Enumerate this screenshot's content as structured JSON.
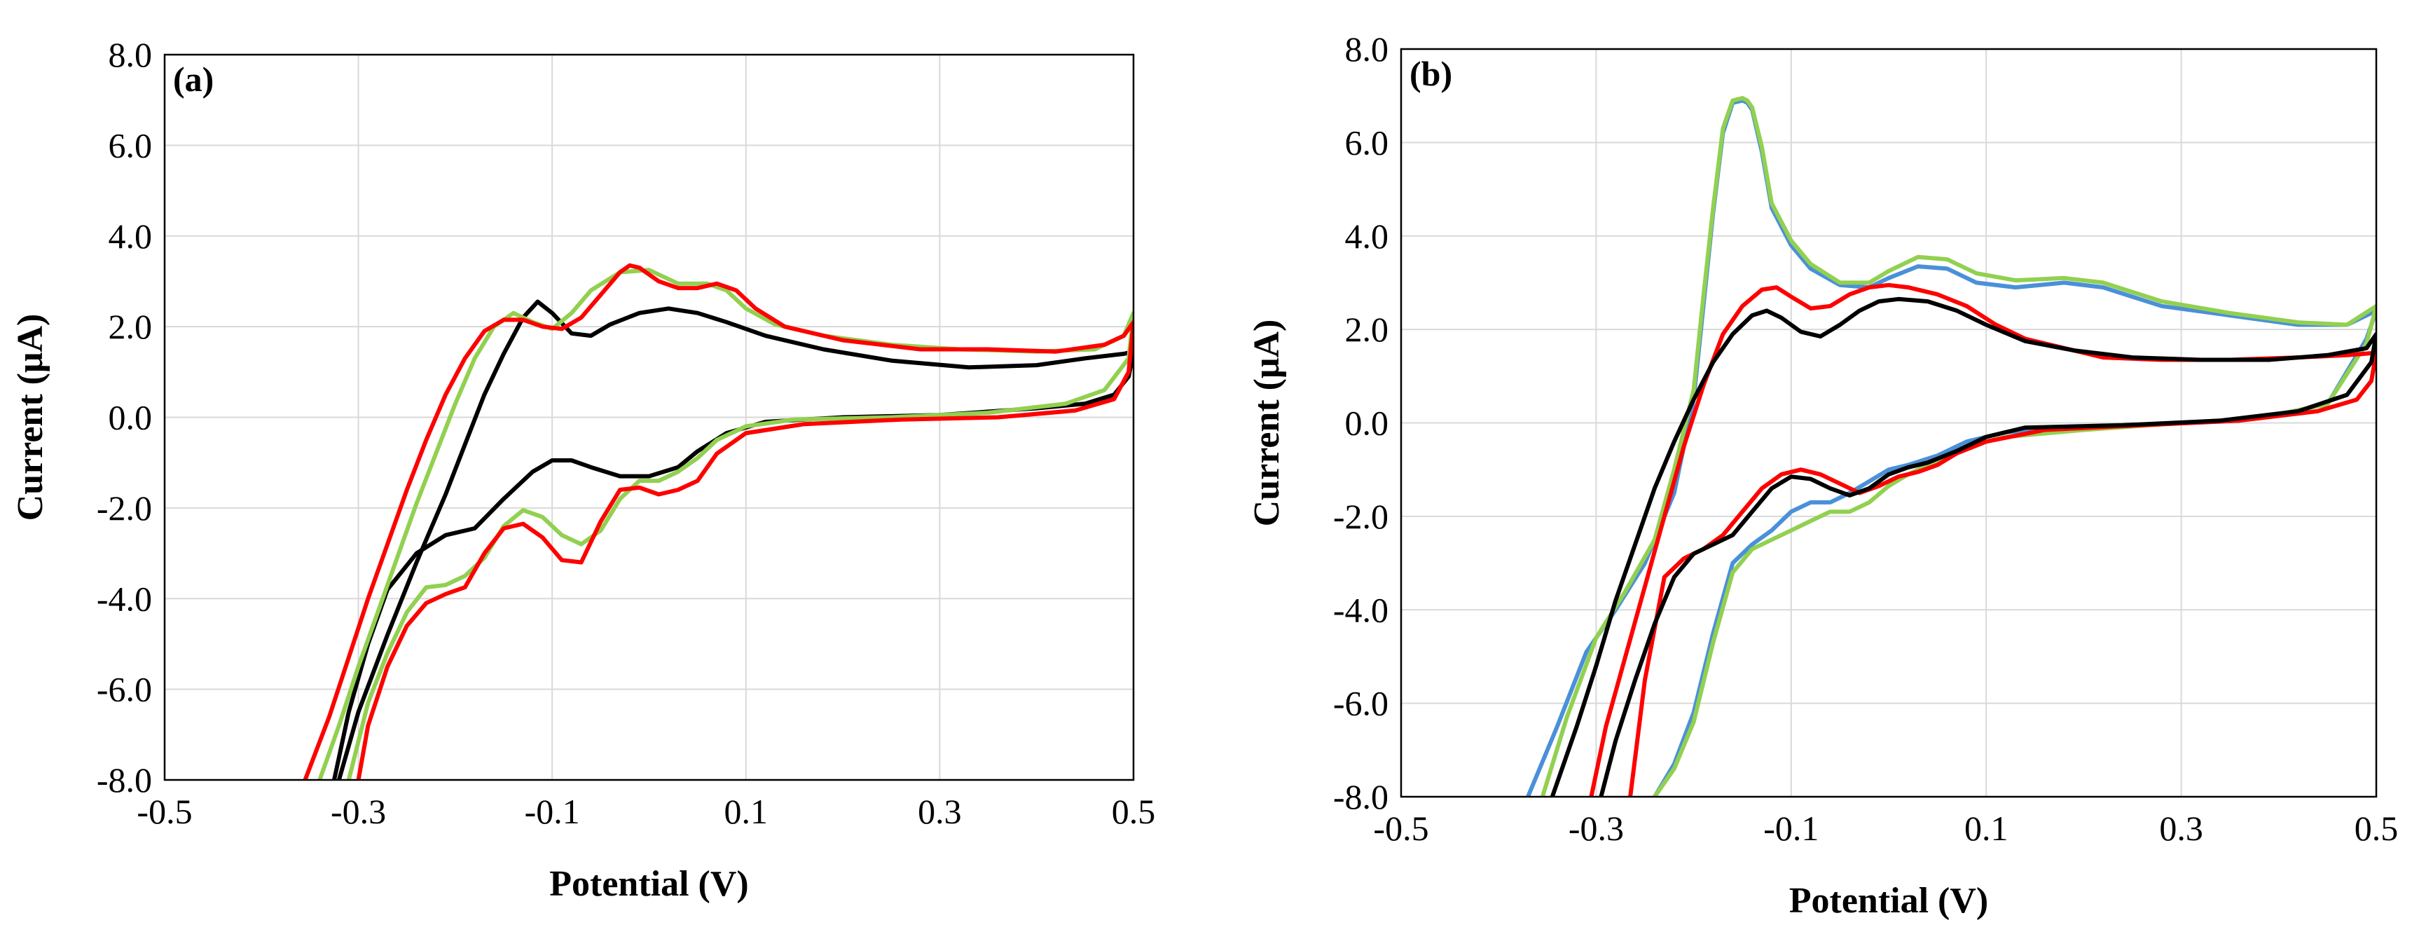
{
  "chart_data": [
    {
      "type": "line",
      "panel_label": "(a)",
      "xlabel": "Potential (V)",
      "ylabel": "Current (μA)",
      "xlim": [
        -0.5,
        0.5
      ],
      "ylim": [
        -8,
        8
      ],
      "xticks": [
        -0.5,
        -0.3,
        -0.1,
        0.1,
        0.3,
        0.5
      ],
      "xtick_labels": [
        "-0.5",
        "-0.3",
        "-0.1",
        "0.1",
        "0.3",
        "0.5"
      ],
      "yticks": [
        8,
        6,
        4,
        2,
        0,
        -2,
        -4,
        -6,
        -8
      ],
      "ytick_labels": [
        "8.0",
        "6.0",
        "4.0",
        "2.0",
        "0.0",
        "-2.0",
        "-4.0",
        "-6.0",
        "-8.0"
      ],
      "grid": true,
      "series": [
        {
          "name": "black",
          "color": "#000000",
          "x": [
            -0.32,
            -0.3,
            -0.27,
            -0.24,
            -0.21,
            -0.19,
            -0.17,
            -0.15,
            -0.13,
            -0.115,
            -0.1,
            -0.08,
            -0.06,
            -0.04,
            -0.01,
            0.02,
            0.05,
            0.08,
            0.12,
            0.18,
            0.25,
            0.33,
            0.4,
            0.45,
            0.49,
            0.5,
            0.495,
            0.48,
            0.45,
            0.4,
            0.3,
            0.2,
            0.12,
            0.08,
            0.05,
            0.03,
            0.0,
            -0.03,
            -0.06,
            -0.08,
            -0.1,
            -0.12,
            -0.15,
            -0.18,
            -0.21,
            -0.24,
            -0.27,
            -0.29,
            -0.31,
            -0.325
          ],
          "y": [
            -8.0,
            -6.5,
            -4.8,
            -3.2,
            -1.7,
            -0.6,
            0.5,
            1.4,
            2.2,
            2.55,
            2.3,
            1.85,
            1.8,
            2.05,
            2.3,
            2.4,
            2.3,
            2.1,
            1.8,
            1.5,
            1.25,
            1.1,
            1.15,
            1.3,
            1.4,
            1.45,
            0.9,
            0.5,
            0.3,
            0.2,
            0.05,
            0.0,
            -0.1,
            -0.35,
            -0.75,
            -1.1,
            -1.3,
            -1.3,
            -1.1,
            -0.95,
            -0.95,
            -1.2,
            -1.8,
            -2.45,
            -2.6,
            -3.0,
            -3.8,
            -5.0,
            -6.5,
            -8.0
          ]
        },
        {
          "name": "green",
          "color": "#92d050",
          "x": [
            -0.34,
            -0.32,
            -0.3,
            -0.28,
            -0.26,
            -0.24,
            -0.22,
            -0.2,
            -0.18,
            -0.16,
            -0.14,
            -0.12,
            -0.1,
            -0.08,
            -0.06,
            -0.03,
            0.0,
            0.03,
            0.06,
            0.08,
            0.1,
            0.13,
            0.18,
            0.25,
            0.32,
            0.4,
            0.46,
            0.49,
            0.5,
            0.495,
            0.47,
            0.43,
            0.35,
            0.25,
            0.15,
            0.1,
            0.07,
            0.05,
            0.03,
            0.01,
            -0.01,
            -0.03,
            -0.05,
            -0.07,
            -0.09,
            -0.11,
            -0.13,
            -0.15,
            -0.17,
            -0.19,
            -0.21,
            -0.23,
            -0.25,
            -0.27,
            -0.29,
            -0.31
          ],
          "y": [
            -8.0,
            -6.8,
            -5.5,
            -4.3,
            -3.1,
            -1.9,
            -0.8,
            0.3,
            1.3,
            2.0,
            2.3,
            2.1,
            1.95,
            2.3,
            2.8,
            3.2,
            3.25,
            2.95,
            2.95,
            2.8,
            2.4,
            2.05,
            1.8,
            1.6,
            1.5,
            1.45,
            1.5,
            1.8,
            2.3,
            1.3,
            0.6,
            0.3,
            0.1,
            0.0,
            -0.05,
            -0.2,
            -0.5,
            -0.9,
            -1.2,
            -1.4,
            -1.4,
            -1.8,
            -2.5,
            -2.8,
            -2.6,
            -2.2,
            -2.05,
            -2.4,
            -3.1,
            -3.5,
            -3.7,
            -3.75,
            -4.3,
            -5.2,
            -6.3,
            -8.0
          ]
        },
        {
          "name": "red",
          "color": "#ff0000",
          "x": [
            -0.355,
            -0.33,
            -0.31,
            -0.29,
            -0.27,
            -0.25,
            -0.23,
            -0.21,
            -0.19,
            -0.17,
            -0.15,
            -0.13,
            -0.11,
            -0.09,
            -0.07,
            -0.05,
            -0.03,
            -0.02,
            -0.01,
            0.01,
            0.03,
            0.05,
            0.07,
            0.09,
            0.11,
            0.14,
            0.2,
            0.28,
            0.35,
            0.42,
            0.47,
            0.49,
            0.5,
            0.495,
            0.48,
            0.44,
            0.36,
            0.26,
            0.16,
            0.1,
            0.07,
            0.05,
            0.03,
            0.01,
            -0.01,
            -0.03,
            -0.05,
            -0.07,
            -0.09,
            -0.11,
            -0.13,
            -0.15,
            -0.17,
            -0.19,
            -0.21,
            -0.23,
            -0.25,
            -0.27,
            -0.29,
            -0.3
          ],
          "y": [
            -8.0,
            -6.6,
            -5.3,
            -4.0,
            -2.8,
            -1.6,
            -0.5,
            0.5,
            1.3,
            1.9,
            2.15,
            2.15,
            2.0,
            1.95,
            2.2,
            2.7,
            3.2,
            3.35,
            3.3,
            3.0,
            2.85,
            2.85,
            2.95,
            2.8,
            2.4,
            2.0,
            1.7,
            1.5,
            1.5,
            1.45,
            1.6,
            1.8,
            2.1,
            1.0,
            0.4,
            0.15,
            0.0,
            -0.05,
            -0.15,
            -0.35,
            -0.8,
            -1.4,
            -1.6,
            -1.7,
            -1.55,
            -1.6,
            -2.3,
            -3.2,
            -3.15,
            -2.65,
            -2.35,
            -2.45,
            -3.0,
            -3.75,
            -3.9,
            -4.1,
            -4.6,
            -5.5,
            -6.8,
            -8.0
          ]
        }
      ]
    },
    {
      "type": "line",
      "panel_label": "(b)",
      "xlabel": "Potential (V)",
      "ylabel": "Current (μA)",
      "xlim": [
        -0.5,
        0.5
      ],
      "ylim": [
        -8,
        8
      ],
      "xticks": [
        -0.5,
        -0.3,
        -0.1,
        0.1,
        0.3,
        0.5
      ],
      "xtick_labels": [
        "-0.5",
        "-0.3",
        "-0.1",
        "0.1",
        "0.3",
        "0.5"
      ],
      "yticks": [
        8,
        6,
        4,
        2,
        0,
        -2,
        -4,
        -6,
        -8
      ],
      "ytick_labels": [
        "8.0",
        "6.0",
        "4.0",
        "2.0",
        "0.0",
        "-2.0",
        "-4.0",
        "-6.0",
        "-8.0"
      ],
      "grid": true,
      "series": [
        {
          "name": "blue",
          "color": "#4a90d9",
          "x": [
            -0.37,
            -0.34,
            -0.31,
            -0.28,
            -0.25,
            -0.22,
            -0.2,
            -0.19,
            -0.18,
            -0.17,
            -0.16,
            -0.15,
            -0.145,
            -0.14,
            -0.13,
            -0.12,
            -0.1,
            -0.08,
            -0.05,
            -0.02,
            0.0,
            0.03,
            0.06,
            0.09,
            0.13,
            0.18,
            0.22,
            0.28,
            0.35,
            0.42,
            0.47,
            0.5,
            0.49,
            0.45,
            0.38,
            0.3,
            0.2,
            0.12,
            0.08,
            0.05,
            0.02,
            0.0,
            -0.02,
            -0.04,
            -0.06,
            -0.08,
            -0.1,
            -0.12,
            -0.14,
            -0.16,
            -0.18,
            -0.2,
            -0.22,
            -0.24
          ],
          "y": [
            -8.0,
            -6.5,
            -4.9,
            -4.0,
            -3.0,
            -1.5,
            0.5,
            2.5,
            4.5,
            6.2,
            6.85,
            6.9,
            6.85,
            6.7,
            5.8,
            4.6,
            3.8,
            3.3,
            2.95,
            2.9,
            3.1,
            3.35,
            3.3,
            3.0,
            2.9,
            3.0,
            2.9,
            2.5,
            2.3,
            2.1,
            2.1,
            2.4,
            1.8,
            0.4,
            0.1,
            0.0,
            -0.1,
            -0.2,
            -0.4,
            -0.7,
            -0.9,
            -1.0,
            -1.25,
            -1.5,
            -1.7,
            -1.7,
            -1.9,
            -2.3,
            -2.6,
            -3.0,
            -4.5,
            -6.2,
            -7.3,
            -8.0
          ]
        },
        {
          "name": "green",
          "color": "#92d050",
          "x": [
            -0.355,
            -0.33,
            -0.3,
            -0.27,
            -0.24,
            -0.22,
            -0.2,
            -0.19,
            -0.18,
            -0.17,
            -0.16,
            -0.15,
            -0.145,
            -0.14,
            -0.13,
            -0.12,
            -0.1,
            -0.08,
            -0.05,
            -0.02,
            0.0,
            0.03,
            0.06,
            0.09,
            0.13,
            0.18,
            0.22,
            0.28,
            0.35,
            0.42,
            0.47,
            0.5,
            0.49,
            0.45,
            0.38,
            0.3,
            0.2,
            0.12,
            0.08,
            0.05,
            0.02,
            0.0,
            -0.02,
            -0.04,
            -0.06,
            -0.08,
            -0.1,
            -0.12,
            -0.14,
            -0.16,
            -0.18,
            -0.2,
            -0.22,
            -0.24
          ],
          "y": [
            -8.0,
            -6.3,
            -4.6,
            -3.6,
            -2.5,
            -1.0,
            0.7,
            2.7,
            4.6,
            6.3,
            6.9,
            6.95,
            6.9,
            6.75,
            5.9,
            4.7,
            3.9,
            3.4,
            3.0,
            3.0,
            3.25,
            3.55,
            3.5,
            3.2,
            3.05,
            3.1,
            3.0,
            2.6,
            2.35,
            2.15,
            2.1,
            2.5,
            1.7,
            0.4,
            0.1,
            0.0,
            -0.15,
            -0.3,
            -0.5,
            -0.8,
            -1.1,
            -1.35,
            -1.7,
            -1.9,
            -1.9,
            -2.1,
            -2.3,
            -2.5,
            -2.7,
            -3.2,
            -4.7,
            -6.4,
            -7.4,
            -8.0
          ]
        },
        {
          "name": "red",
          "color": "#ff0000",
          "x": [
            -0.305,
            -0.29,
            -0.27,
            -0.25,
            -0.23,
            -0.21,
            -0.19,
            -0.17,
            -0.15,
            -0.13,
            -0.115,
            -0.1,
            -0.08,
            -0.06,
            -0.04,
            -0.02,
            0.0,
            0.02,
            0.05,
            0.08,
            0.11,
            0.14,
            0.18,
            0.22,
            0.28,
            0.35,
            0.42,
            0.47,
            0.5,
            0.495,
            0.48,
            0.44,
            0.36,
            0.26,
            0.16,
            0.1,
            0.07,
            0.05,
            0.03,
            0.01,
            -0.01,
            -0.03,
            -0.05,
            -0.07,
            -0.09,
            -0.11,
            -0.13,
            -0.15,
            -0.17,
            -0.19,
            -0.21,
            -0.23,
            -0.25,
            -0.265
          ],
          "y": [
            -8.0,
            -6.5,
            -5.0,
            -3.5,
            -2.0,
            -0.5,
            0.8,
            1.9,
            2.5,
            2.85,
            2.9,
            2.7,
            2.45,
            2.5,
            2.75,
            2.9,
            2.95,
            2.9,
            2.75,
            2.5,
            2.1,
            1.8,
            1.6,
            1.4,
            1.35,
            1.35,
            1.4,
            1.45,
            1.5,
            0.9,
            0.5,
            0.25,
            0.05,
            -0.05,
            -0.15,
            -0.4,
            -0.65,
            -0.9,
            -1.05,
            -1.15,
            -1.35,
            -1.5,
            -1.3,
            -1.1,
            -1.0,
            -1.1,
            -1.4,
            -1.9,
            -2.4,
            -2.7,
            -2.9,
            -3.3,
            -5.5,
            -8.0
          ]
        },
        {
          "name": "black",
          "color": "#000000",
          "x": [
            -0.345,
            -0.32,
            -0.3,
            -0.28,
            -0.26,
            -0.24,
            -0.22,
            -0.2,
            -0.18,
            -0.16,
            -0.14,
            -0.125,
            -0.11,
            -0.09,
            -0.07,
            -0.05,
            -0.03,
            -0.01,
            0.01,
            0.04,
            0.07,
            0.1,
            0.14,
            0.19,
            0.25,
            0.32,
            0.39,
            0.45,
            0.49,
            0.5,
            0.495,
            0.47,
            0.42,
            0.34,
            0.24,
            0.14,
            0.1,
            0.07,
            0.04,
            0.02,
            0.0,
            -0.02,
            -0.04,
            -0.06,
            -0.08,
            -0.1,
            -0.12,
            -0.14,
            -0.16,
            -0.18,
            -0.2,
            -0.22,
            -0.24,
            -0.26,
            -0.28,
            -0.295
          ],
          "y": [
            -8.0,
            -6.5,
            -5.2,
            -3.8,
            -2.6,
            -1.4,
            -0.4,
            0.5,
            1.3,
            1.9,
            2.3,
            2.4,
            2.25,
            1.95,
            1.85,
            2.1,
            2.4,
            2.6,
            2.65,
            2.6,
            2.4,
            2.1,
            1.75,
            1.55,
            1.4,
            1.35,
            1.35,
            1.45,
            1.6,
            1.9,
            1.3,
            0.6,
            0.25,
            0.05,
            -0.05,
            -0.1,
            -0.3,
            -0.6,
            -0.85,
            -0.95,
            -1.1,
            -1.4,
            -1.55,
            -1.4,
            -1.2,
            -1.15,
            -1.4,
            -1.9,
            -2.4,
            -2.6,
            -2.8,
            -3.3,
            -4.3,
            -5.5,
            -6.8,
            -8.0
          ]
        }
      ]
    }
  ]
}
